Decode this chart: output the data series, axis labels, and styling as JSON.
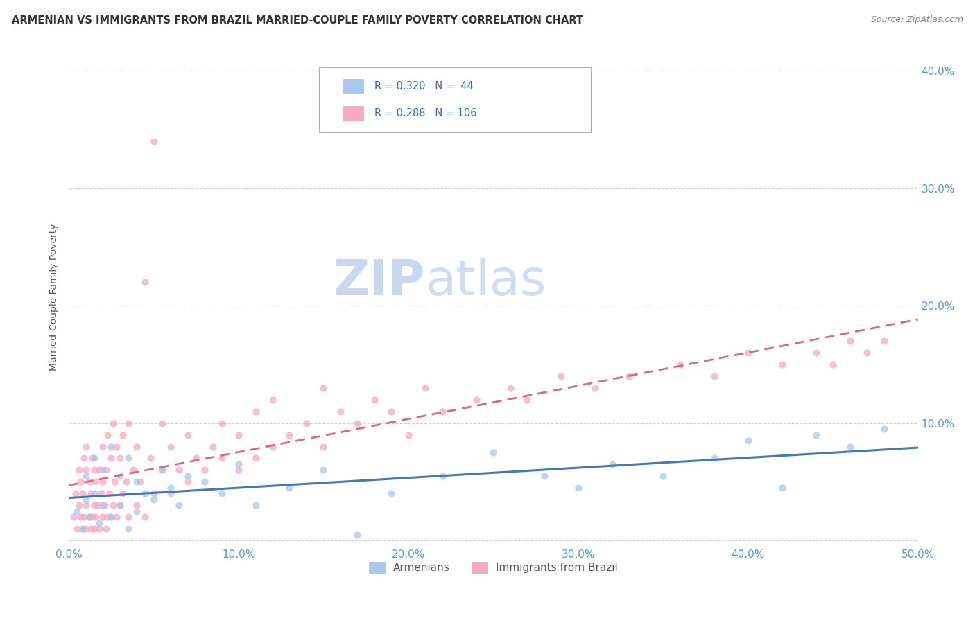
{
  "title": "ARMENIAN VS IMMIGRANTS FROM BRAZIL MARRIED-COUPLE FAMILY POVERTY CORRELATION CHART",
  "source": "Source: ZipAtlas.com",
  "ylabel": "Married-Couple Family Poverty",
  "xlim": [
    0.0,
    0.5
  ],
  "ylim": [
    -0.005,
    0.42
  ],
  "xticks": [
    0.0,
    0.1,
    0.2,
    0.3,
    0.4,
    0.5
  ],
  "yticks": [
    0.0,
    0.1,
    0.2,
    0.3,
    0.4
  ],
  "xticklabels": [
    "0.0%",
    "10.0%",
    "20.0%",
    "30.0%",
    "40.0%",
    "50.0%"
  ],
  "yticklabels": [
    "",
    "10.0%",
    "20.0%",
    "30.0%",
    "40.0%"
  ],
  "color_armenian": "#a8c8f0",
  "color_brazil": "#f8a8c0",
  "color_line_armenian": "#4477bb",
  "color_line_brazil": "#dd6688",
  "armenian_x": [
    0.005,
    0.008,
    0.01,
    0.01,
    0.012,
    0.015,
    0.015,
    0.018,
    0.02,
    0.02,
    0.025,
    0.025,
    0.03,
    0.03,
    0.035,
    0.035,
    0.04,
    0.04,
    0.045,
    0.05,
    0.055,
    0.06,
    0.065,
    0.07,
    0.08,
    0.09,
    0.1,
    0.11,
    0.13,
    0.15,
    0.17,
    0.19,
    0.22,
    0.25,
    0.28,
    0.3,
    0.32,
    0.35,
    0.38,
    0.4,
    0.42,
    0.44,
    0.46,
    0.48
  ],
  "armenian_y": [
    0.025,
    0.01,
    0.035,
    0.055,
    0.02,
    0.04,
    0.07,
    0.015,
    0.03,
    0.06,
    0.02,
    0.08,
    0.03,
    0.055,
    0.01,
    0.07,
    0.025,
    0.05,
    0.04,
    0.035,
    0.06,
    0.045,
    0.03,
    0.055,
    0.05,
    0.04,
    0.065,
    0.03,
    0.045,
    0.06,
    0.005,
    0.04,
    0.055,
    0.075,
    0.055,
    0.045,
    0.065,
    0.055,
    0.07,
    0.085,
    0.045,
    0.09,
    0.08,
    0.095
  ],
  "brazil_x": [
    0.003,
    0.004,
    0.005,
    0.006,
    0.006,
    0.007,
    0.007,
    0.008,
    0.008,
    0.009,
    0.009,
    0.01,
    0.01,
    0.01,
    0.01,
    0.012,
    0.012,
    0.013,
    0.013,
    0.014,
    0.014,
    0.015,
    0.015,
    0.015,
    0.016,
    0.016,
    0.017,
    0.018,
    0.018,
    0.019,
    0.02,
    0.02,
    0.02,
    0.021,
    0.022,
    0.022,
    0.023,
    0.023,
    0.024,
    0.025,
    0.025,
    0.026,
    0.026,
    0.027,
    0.028,
    0.028,
    0.03,
    0.03,
    0.032,
    0.032,
    0.034,
    0.035,
    0.035,
    0.038,
    0.04,
    0.04,
    0.042,
    0.045,
    0.045,
    0.048,
    0.05,
    0.05,
    0.055,
    0.055,
    0.06,
    0.06,
    0.065,
    0.07,
    0.07,
    0.075,
    0.08,
    0.085,
    0.09,
    0.09,
    0.1,
    0.1,
    0.11,
    0.11,
    0.12,
    0.12,
    0.13,
    0.14,
    0.15,
    0.15,
    0.16,
    0.17,
    0.18,
    0.19,
    0.2,
    0.21,
    0.22,
    0.24,
    0.26,
    0.27,
    0.29,
    0.31,
    0.33,
    0.36,
    0.38,
    0.4,
    0.42,
    0.44,
    0.45,
    0.46,
    0.47,
    0.48
  ],
  "brazil_y": [
    0.02,
    0.04,
    0.01,
    0.03,
    0.06,
    0.02,
    0.05,
    0.01,
    0.04,
    0.02,
    0.07,
    0.01,
    0.03,
    0.06,
    0.08,
    0.02,
    0.05,
    0.01,
    0.04,
    0.02,
    0.07,
    0.01,
    0.03,
    0.06,
    0.02,
    0.05,
    0.03,
    0.01,
    0.06,
    0.04,
    0.02,
    0.05,
    0.08,
    0.03,
    0.01,
    0.06,
    0.02,
    0.09,
    0.04,
    0.02,
    0.07,
    0.03,
    0.1,
    0.05,
    0.02,
    0.08,
    0.03,
    0.07,
    0.04,
    0.09,
    0.05,
    0.02,
    0.1,
    0.06,
    0.03,
    0.08,
    0.05,
    0.02,
    0.22,
    0.07,
    0.04,
    0.34,
    0.06,
    0.1,
    0.04,
    0.08,
    0.06,
    0.05,
    0.09,
    0.07,
    0.06,
    0.08,
    0.07,
    0.1,
    0.06,
    0.09,
    0.07,
    0.11,
    0.08,
    0.12,
    0.09,
    0.1,
    0.08,
    0.13,
    0.11,
    0.1,
    0.12,
    0.11,
    0.09,
    0.13,
    0.11,
    0.12,
    0.13,
    0.12,
    0.14,
    0.13,
    0.14,
    0.15,
    0.14,
    0.16,
    0.15,
    0.16,
    0.15,
    0.17,
    0.16,
    0.17
  ]
}
